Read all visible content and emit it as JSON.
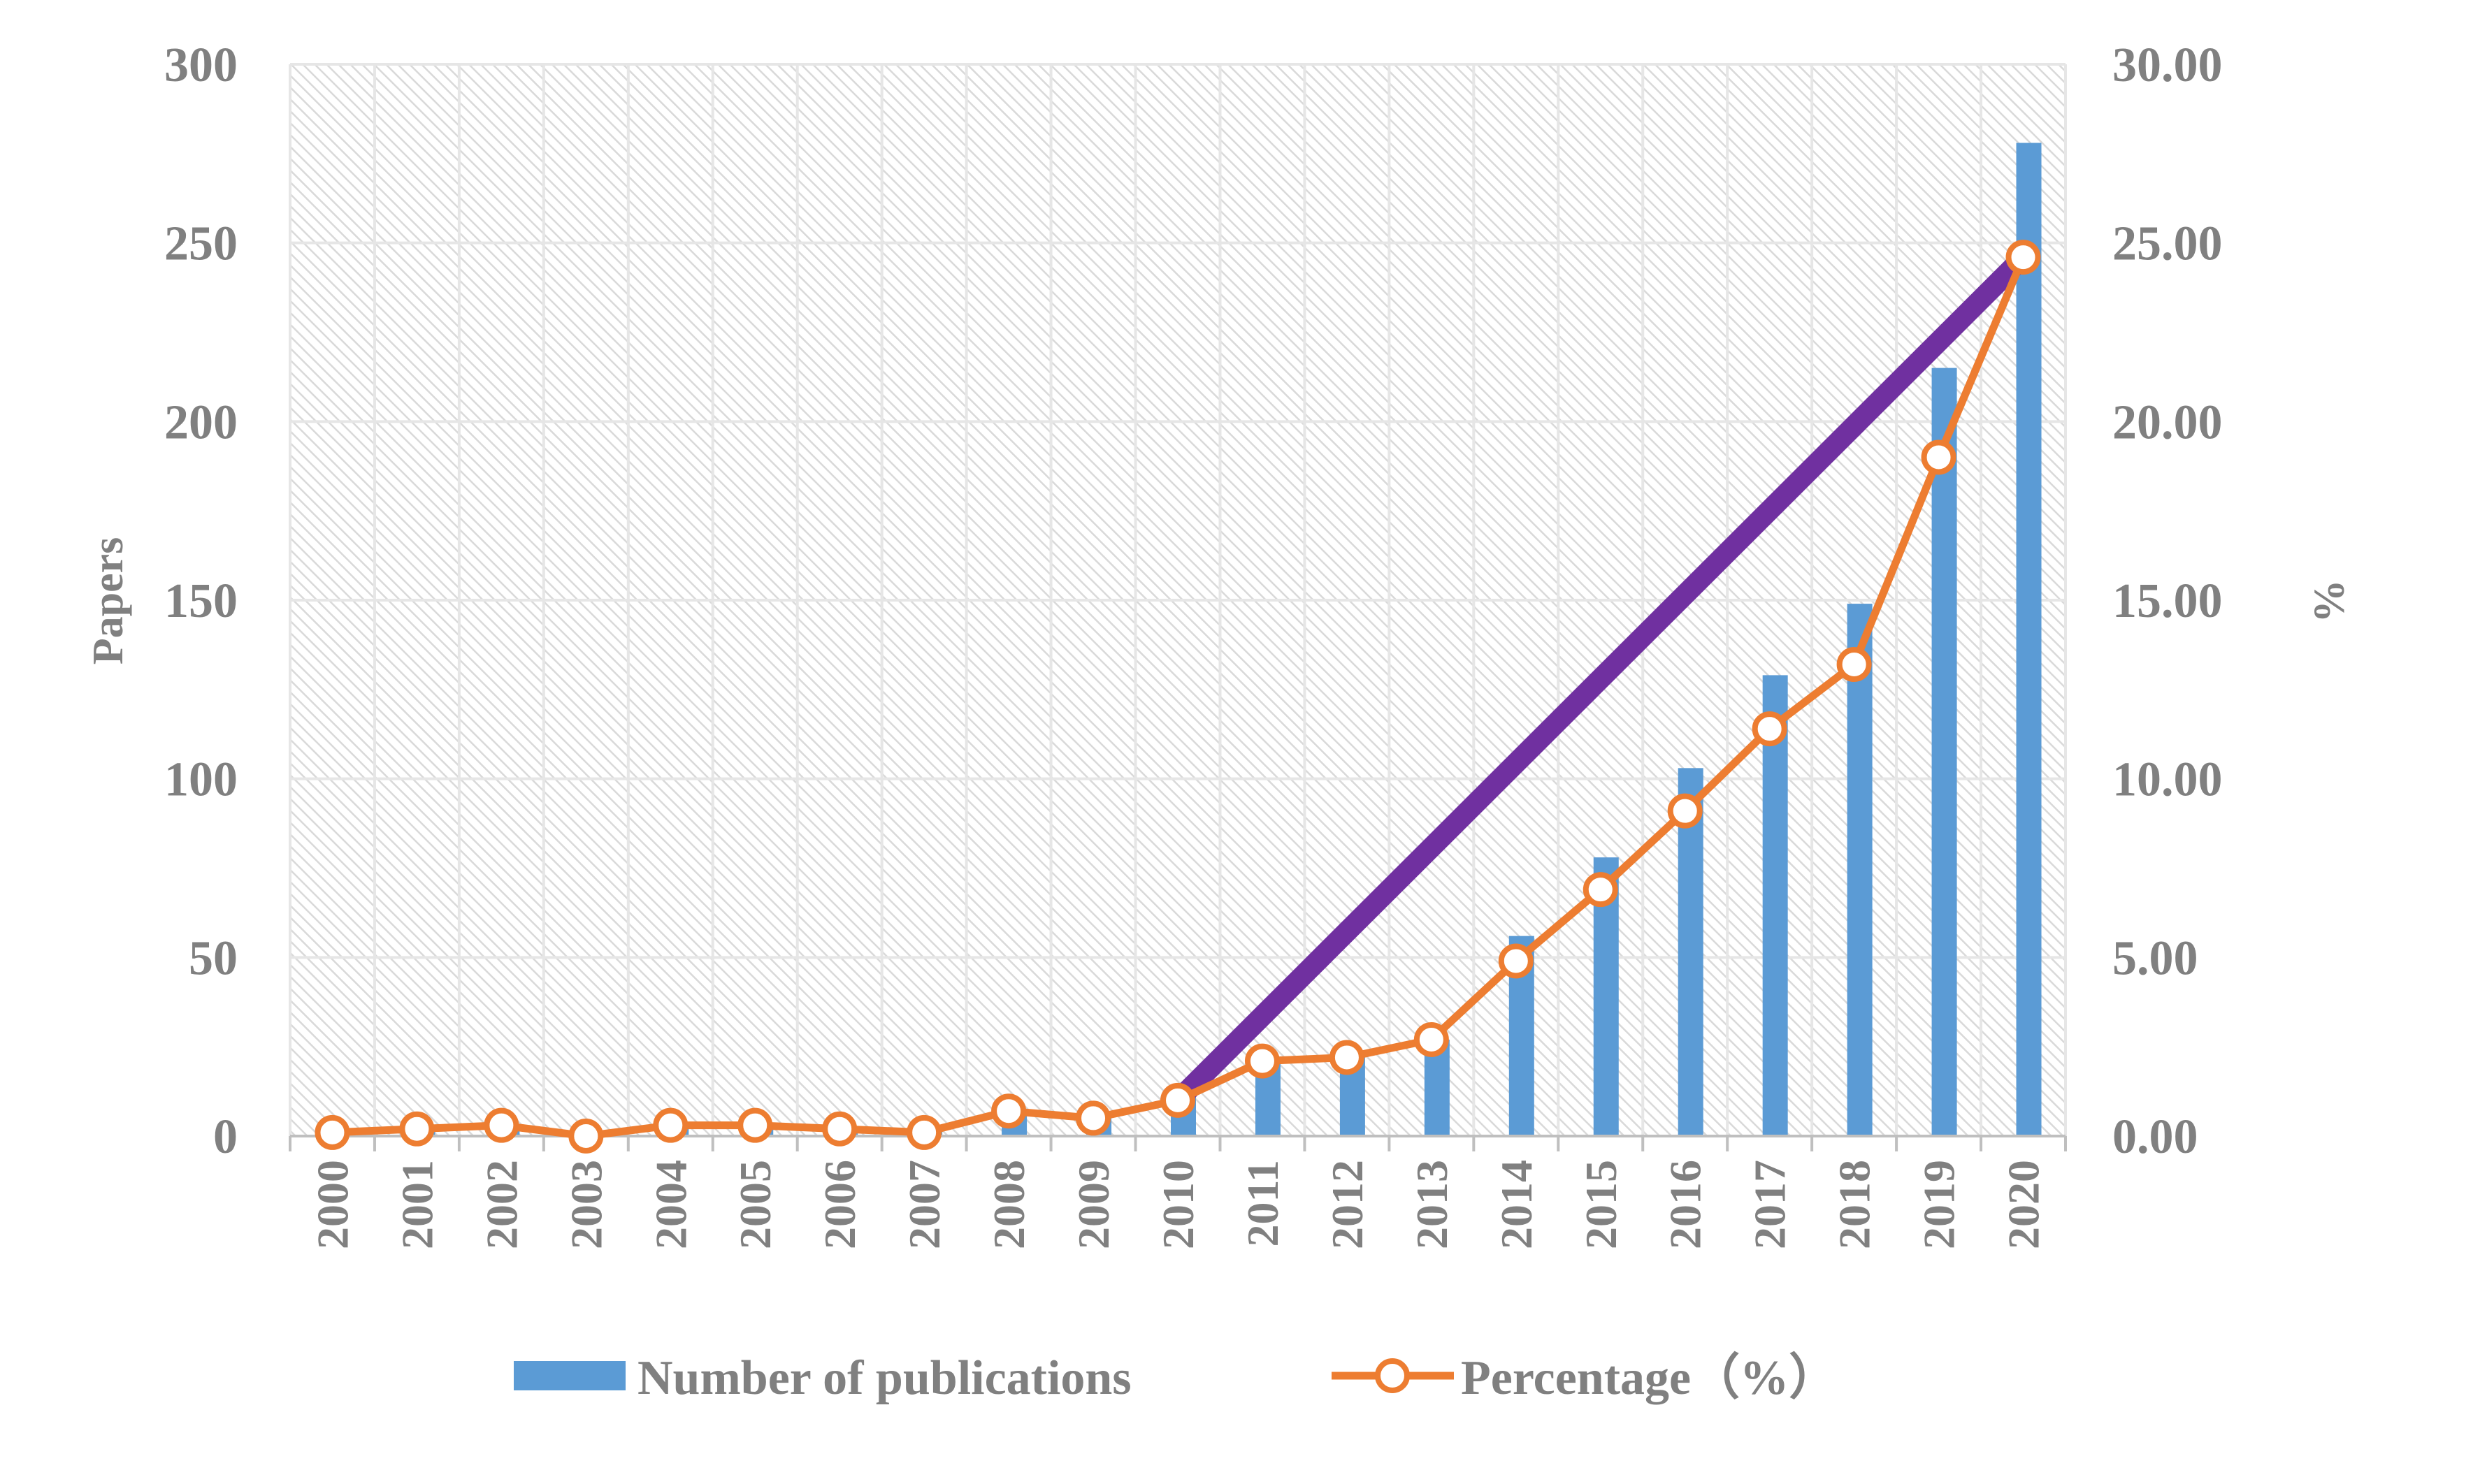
{
  "chart_data": {
    "type": "bar+line",
    "title": "",
    "xlabel": "",
    "ylabel_left": "Papers",
    "ylabel_right": "%",
    "categories": [
      "2000",
      "2001",
      "2002",
      "2003",
      "2004",
      "2005",
      "2006",
      "2007",
      "2008",
      "2009",
      "2010",
      "2011",
      "2012",
      "2013",
      "2014",
      "2015",
      "2016",
      "2017",
      "2018",
      "2019",
      "2020"
    ],
    "y_left": {
      "min": 0,
      "max": 300,
      "step": 50,
      "ticks": [
        "0",
        "50",
        "100",
        "150",
        "200",
        "250",
        "300"
      ]
    },
    "y_right": {
      "min": 0,
      "max": 30,
      "step": 5,
      "ticks": [
        "0.00",
        "5.00",
        "10.00",
        "15.00",
        "20.00",
        "25.00",
        "30.00"
      ]
    },
    "grid": true,
    "legend_position": "bottom",
    "series": [
      {
        "name": "Number of publications",
        "type": "bar",
        "axis": "left",
        "color": "#5b9bd5",
        "values": [
          1,
          2,
          3,
          1,
          3,
          3,
          2,
          2,
          7,
          6,
          11,
          21,
          23,
          27,
          56,
          78,
          103,
          129,
          149,
          215,
          278
        ]
      },
      {
        "name": "Percentage（%）",
        "type": "line",
        "axis": "right",
        "color": "#ed7d31",
        "marker": "hollow-circle",
        "values": [
          0.1,
          0.2,
          0.3,
          0.0,
          0.3,
          0.3,
          0.2,
          0.1,
          0.7,
          0.5,
          1.0,
          2.1,
          2.2,
          2.7,
          4.9,
          6.9,
          9.1,
          11.4,
          13.2,
          19.0,
          24.6
        ]
      }
    ],
    "annotations": [
      {
        "type": "trend-line",
        "color": "#7030a0",
        "from": {
          "x": "2010",
          "y_right": 1.0
        },
        "to": {
          "x": "2020",
          "y_right": 24.6
        }
      }
    ]
  }
}
